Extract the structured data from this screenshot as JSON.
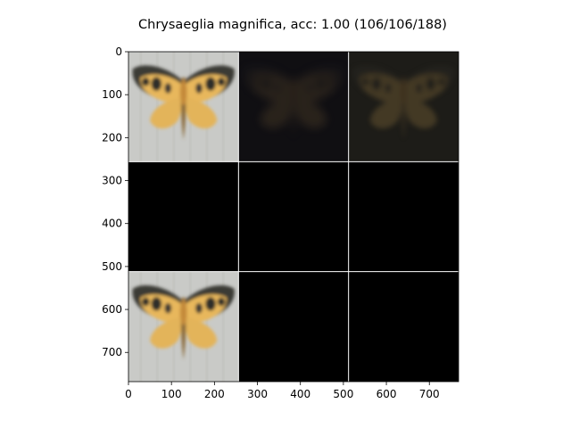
{
  "figure": {
    "title": "Chrysaeglia magnifica, acc: 1.00 (106/106/188)"
  },
  "chart_data": {
    "type": "image-grid",
    "title": "Chrysaeglia magnifica, acc: 1.00 (106/106/188)",
    "xlabel": "",
    "ylabel": "",
    "xlim": [
      0,
      768
    ],
    "ylim": [
      768,
      0
    ],
    "x_ticks": [
      0,
      100,
      200,
      300,
      400,
      500,
      600,
      700
    ],
    "y_ticks": [
      0,
      100,
      200,
      300,
      400,
      500,
      600,
      700
    ],
    "grid_rows": 3,
    "grid_cols": 3,
    "tile_size": 256,
    "tiles": [
      {
        "row": 0,
        "col": 0,
        "content": "moth-bright"
      },
      {
        "row": 0,
        "col": 1,
        "content": "moth-dark-faint"
      },
      {
        "row": 0,
        "col": 2,
        "content": "moth-dark-olive"
      },
      {
        "row": 1,
        "col": 0,
        "content": "black"
      },
      {
        "row": 1,
        "col": 1,
        "content": "black"
      },
      {
        "row": 1,
        "col": 2,
        "content": "black"
      },
      {
        "row": 2,
        "col": 0,
        "content": "moth-bright"
      },
      {
        "row": 2,
        "col": 1,
        "content": "black"
      },
      {
        "row": 2,
        "col": 2,
        "content": "black"
      }
    ],
    "colors": {
      "background_light": "#c9cac7",
      "wing_yellow": "#e8b75c",
      "wing_dark": "#3b3a35",
      "divider": "#ffffff",
      "black": "#000000"
    }
  }
}
